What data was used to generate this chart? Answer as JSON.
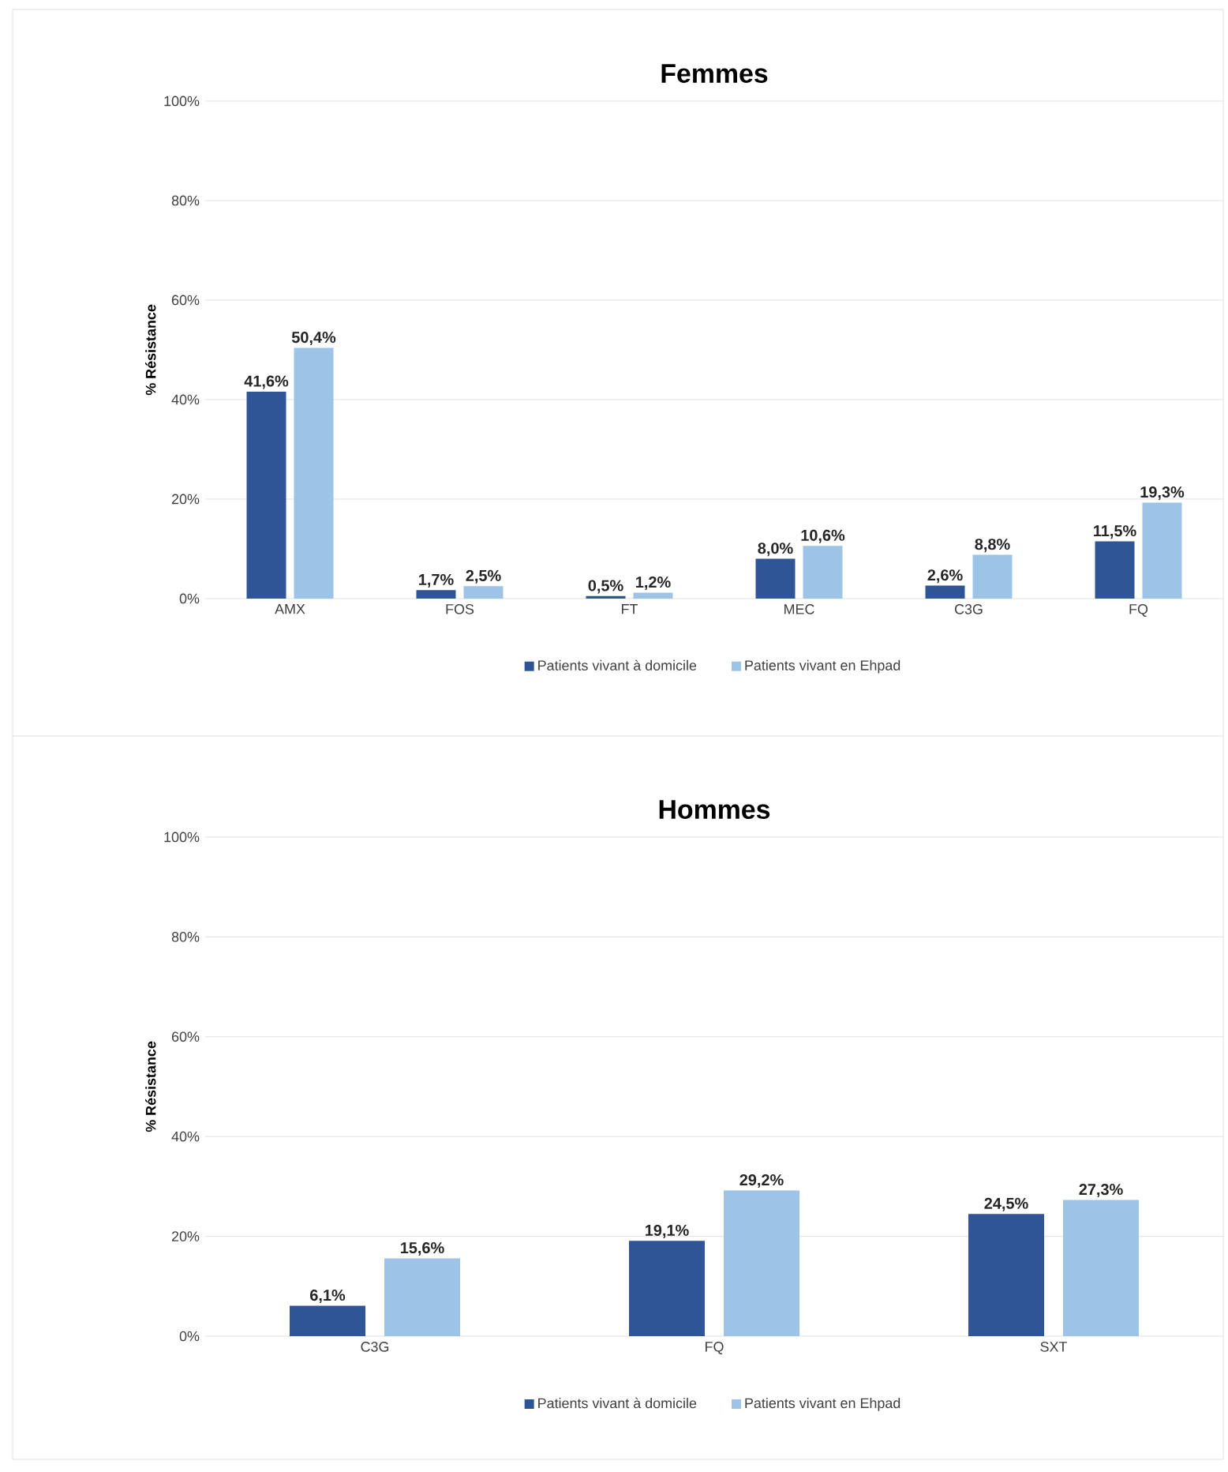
{
  "chart_data": [
    {
      "type": "bar",
      "title": "Femmes",
      "ylabel": "% Résistance",
      "categories": [
        "AMX",
        "FOS",
        "FT",
        "MEC",
        "C3G",
        "FQ"
      ],
      "series": [
        {
          "name": "Patients vivant à domicile",
          "color": "#2f5597",
          "values": [
            41.6,
            1.7,
            0.5,
            8.0,
            2.6,
            11.5
          ],
          "value_labels": [
            "41,6%",
            "1,7%",
            "0,5%",
            "8,0%",
            "2,6%",
            "11,5%"
          ]
        },
        {
          "name": "Patients vivant en Ehpad",
          "color": "#9dc3e6",
          "values": [
            50.4,
            2.5,
            1.2,
            10.6,
            8.8,
            19.3
          ],
          "value_labels": [
            "50,4%",
            "2,5%",
            "1,2%",
            "10,6%",
            "8,8%",
            "19,3%"
          ]
        }
      ],
      "ylim": [
        0,
        100
      ],
      "yticks": [
        {
          "value": 0,
          "label": "0%"
        },
        {
          "value": 20,
          "label": "20%"
        },
        {
          "value": 40,
          "label": "40%"
        },
        {
          "value": 60,
          "label": "60%"
        },
        {
          "value": 80,
          "label": "80%"
        },
        {
          "value": 100,
          "label": "100%"
        }
      ],
      "grid": "y",
      "legend": "bottom"
    },
    {
      "type": "bar",
      "title": "Hommes",
      "ylabel": "% Résistance",
      "categories": [
        "C3G",
        "FQ",
        "SXT"
      ],
      "series": [
        {
          "name": "Patients vivant à domicile",
          "color": "#2f5597",
          "values": [
            6.1,
            19.1,
            24.5
          ],
          "value_labels": [
            "6,1%",
            "19,1%",
            "24,5%"
          ]
        },
        {
          "name": "Patients vivant en Ehpad",
          "color": "#9dc3e6",
          "values": [
            15.6,
            29.2,
            27.3
          ],
          "value_labels": [
            "15,6%",
            "29,2%",
            "27,3%"
          ]
        }
      ],
      "ylim": [
        0,
        100
      ],
      "yticks": [
        {
          "value": 0,
          "label": "0%"
        },
        {
          "value": 20,
          "label": "20%"
        },
        {
          "value": 40,
          "label": "40%"
        },
        {
          "value": 60,
          "label": "60%"
        },
        {
          "value": 80,
          "label": "80%"
        },
        {
          "value": 100,
          "label": "100%"
        }
      ],
      "grid": "y",
      "legend": "bottom"
    }
  ]
}
